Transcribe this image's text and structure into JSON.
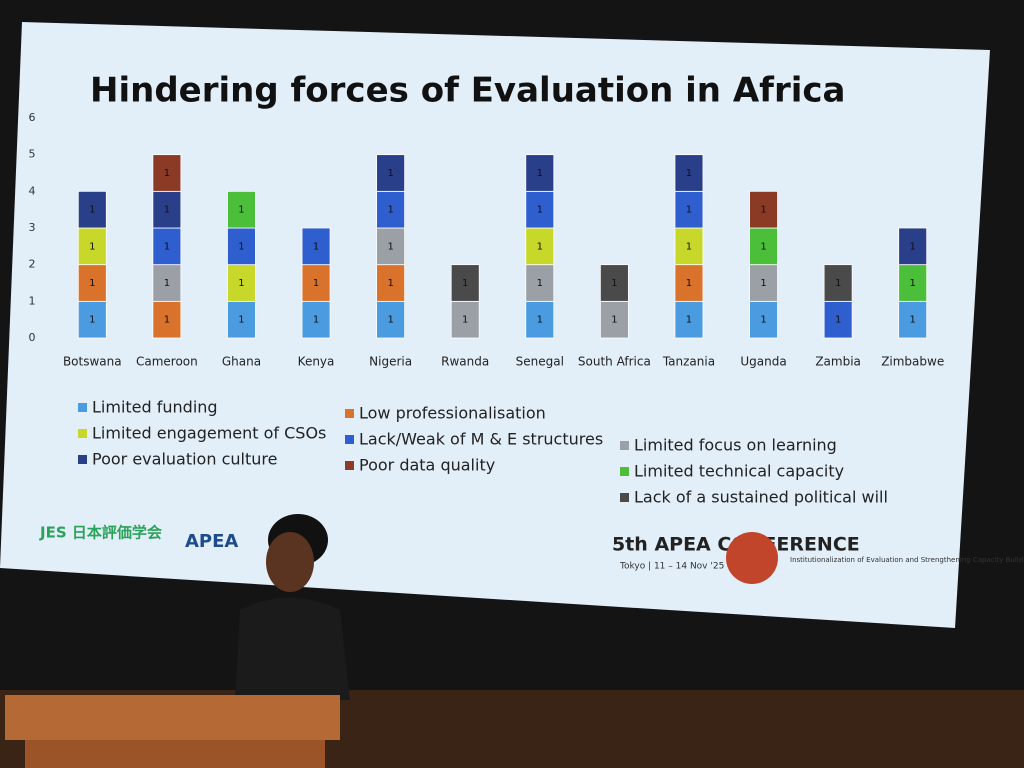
{
  "chart_data": {
    "type": "stacked-bar",
    "title": "Hindering forces of Evaluation in Africa",
    "categories": [
      "Botswana",
      "Cameroon",
      "Ghana",
      "Kenya",
      "Nigeria",
      "Rwanda",
      "Senegal",
      "South Africa",
      "Tanzania",
      "Uganda",
      "Zambia",
      "Zimbabwe"
    ],
    "series": [
      {
        "name": "Limited funding",
        "color": "#4a9be0",
        "values": [
          1,
          null,
          1,
          1,
          1,
          null,
          1,
          null,
          1,
          1,
          null,
          1
        ]
      },
      {
        "name": "Low professionalisation",
        "color": "#d9722b",
        "values": [
          1,
          1,
          null,
          1,
          1,
          null,
          null,
          null,
          1,
          null,
          null,
          null
        ]
      },
      {
        "name": "Limited focus on learning",
        "color": "#9aa0a6",
        "values": [
          null,
          1,
          null,
          null,
          1,
          1,
          1,
          1,
          null,
          1,
          null,
          null
        ]
      },
      {
        "name": "Limited engagement of CSOs",
        "color": "#c8d82a",
        "values": [
          1,
          null,
          1,
          null,
          null,
          null,
          1,
          null,
          1,
          null,
          null,
          null
        ]
      },
      {
        "name": "Lack/Weak of M & E structures",
        "color": "#2f5fcf",
        "values": [
          null,
          1,
          1,
          1,
          1,
          null,
          1,
          null,
          1,
          null,
          1,
          null
        ]
      },
      {
        "name": "Limited technical capacity",
        "color": "#4cbf3a",
        "values": [
          null,
          null,
          1,
          null,
          null,
          null,
          null,
          null,
          null,
          1,
          null,
          1
        ]
      },
      {
        "name": "Poor evaluation culture",
        "color": "#2a3f8a",
        "values": [
          1,
          1,
          null,
          null,
          1,
          null,
          1,
          null,
          1,
          null,
          null,
          1
        ]
      },
      {
        "name": "Poor data quality",
        "color": "#8b3a26",
        "values": [
          null,
          1,
          null,
          null,
          null,
          null,
          null,
          null,
          null,
          1,
          null,
          null
        ]
      },
      {
        "name": "Lack of a sustained political will",
        "color": "#4a4a4a",
        "values": [
          null,
          null,
          null,
          null,
          null,
          1,
          null,
          1,
          null,
          null,
          1,
          null
        ]
      }
    ],
    "ylim": [
      0,
      6
    ],
    "yticks": [
      0,
      1,
      2,
      3,
      4,
      5,
      6
    ],
    "grid": false
  },
  "slide": {
    "logo_left": "JES 日本評価学会",
    "logo_mid": "APEA",
    "conference": "5th APEA CONFERENCE",
    "dates": "Tokyo | 11 – 14 Nov '25",
    "theme": "Institutionalization of Evaluation and Strengthening Capacity Building in Asia Pacific Region"
  }
}
